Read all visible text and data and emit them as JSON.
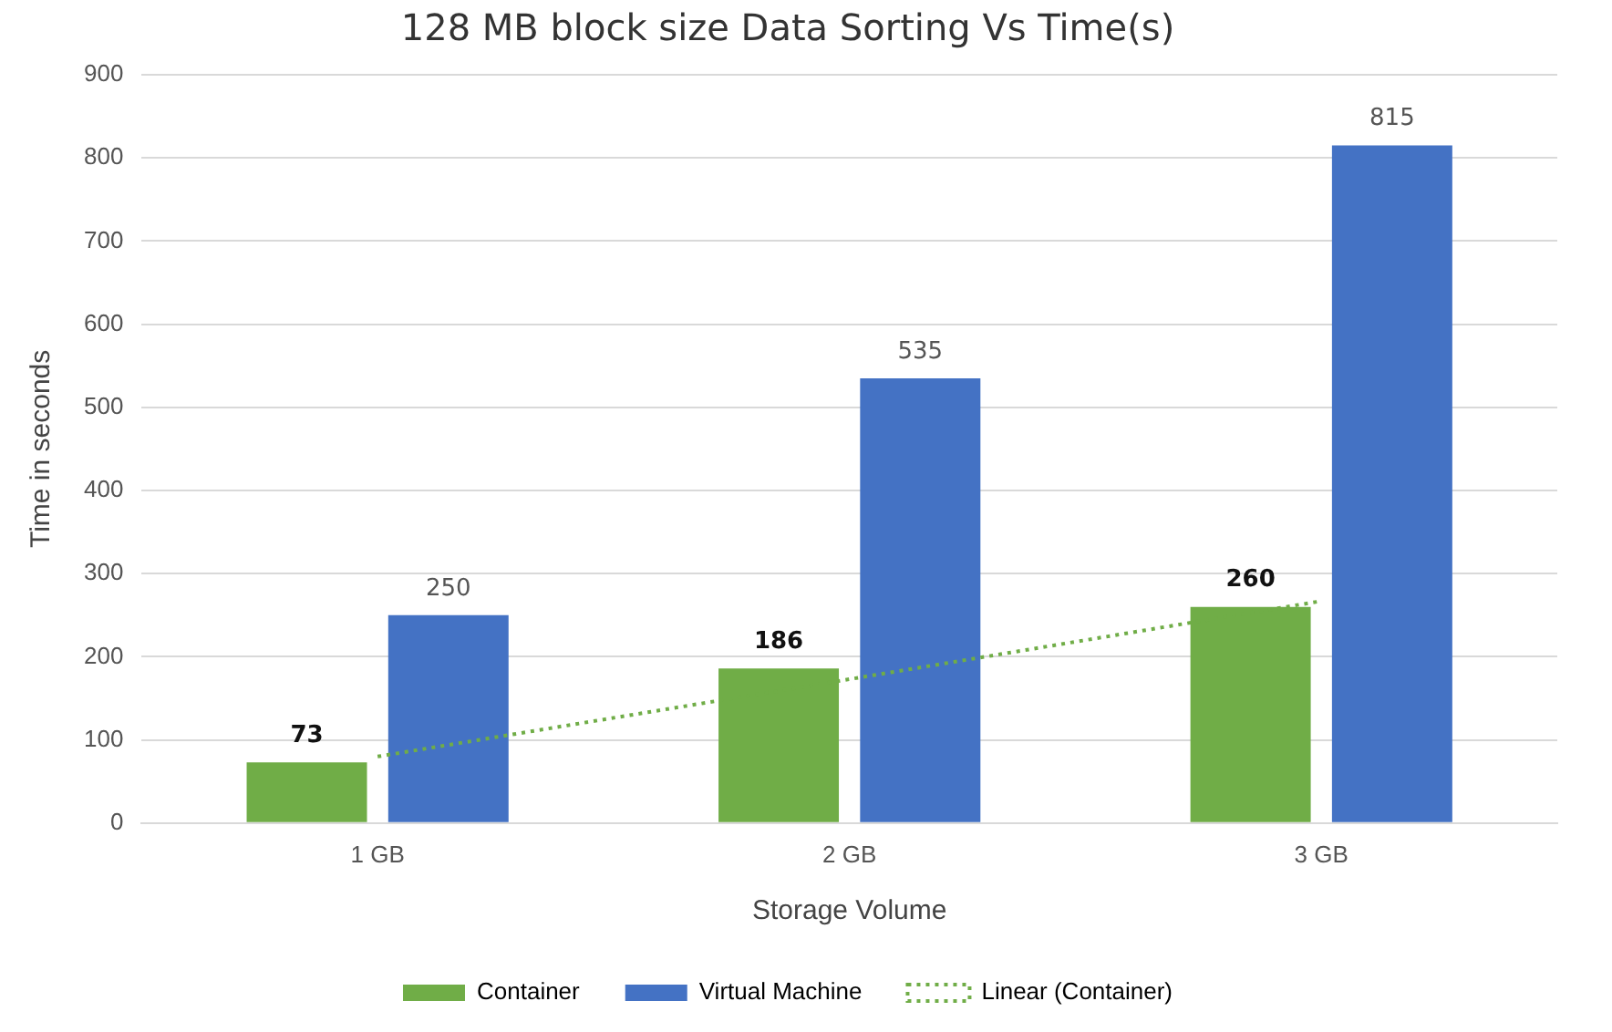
{
  "chart_data": {
    "type": "bar",
    "title": "128 MB block size Data Sorting Vs Time(s)",
    "xlabel": "Storage Volume",
    "ylabel": "Time in seconds",
    "categories": [
      "1 GB",
      "2 GB",
      "3 GB"
    ],
    "series": [
      {
        "name": "Container",
        "color": "#70ad47",
        "values": [
          73,
          186,
          260
        ],
        "value_labels": [
          "73",
          "186",
          "260"
        ]
      },
      {
        "name": "Virtual Machine",
        "color": "#4472c4",
        "values": [
          250,
          535,
          815
        ],
        "value_labels": [
          "250",
          "535",
          "815"
        ]
      },
      {
        "name": "Linear (Container)",
        "type": "line",
        "color": "#70ad47",
        "line_style": "dotted",
        "marker": "none",
        "values": [
          80,
          173,
          267
        ]
      }
    ],
    "ylim": [
      0,
      900
    ],
    "yticks": [
      0,
      100,
      200,
      300,
      400,
      500,
      600,
      700,
      800,
      900
    ],
    "grid": "y",
    "legend": "bottom"
  }
}
